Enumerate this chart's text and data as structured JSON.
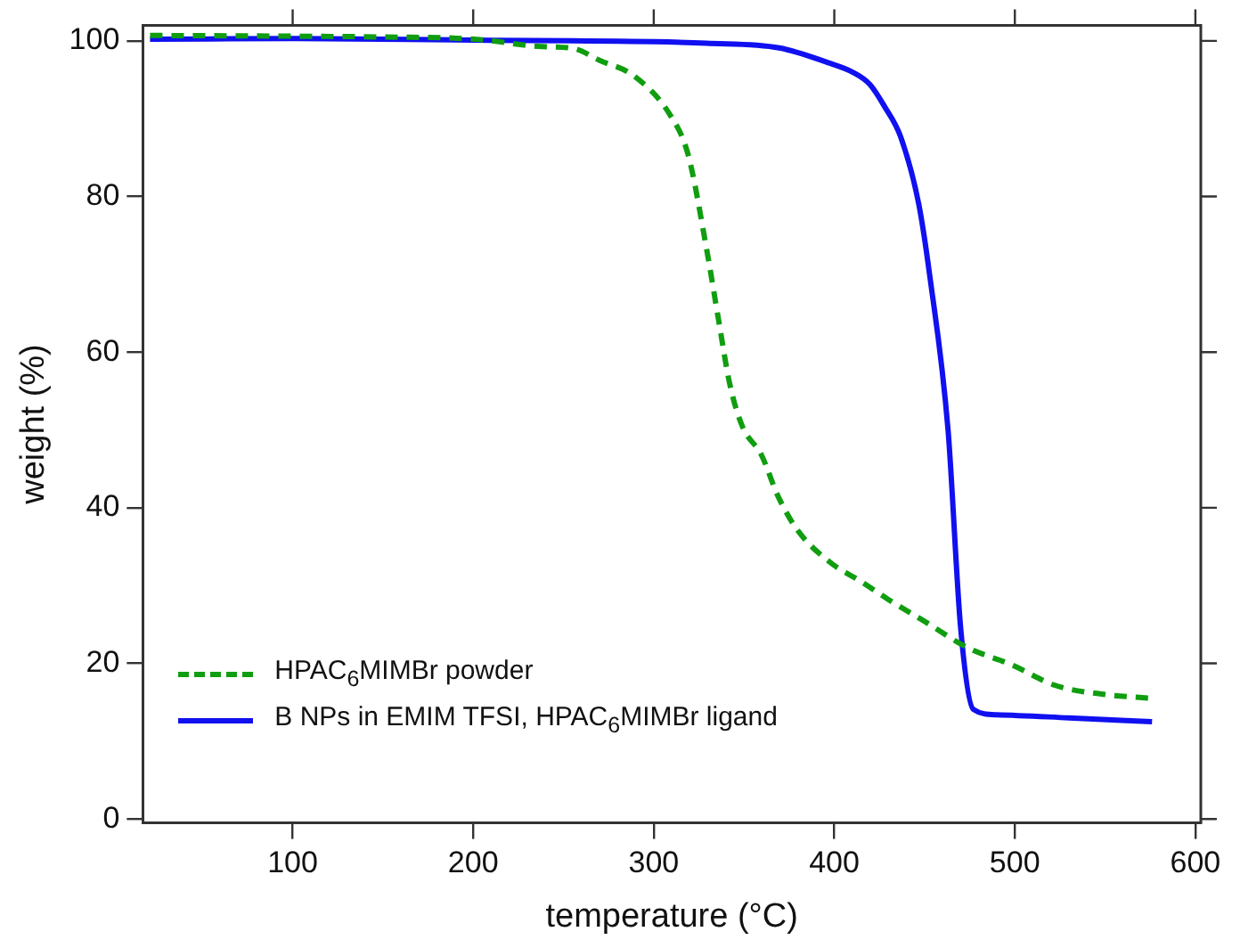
{
  "chart_data": {
    "type": "line",
    "xlabel": "temperature (°C)",
    "ylabel": "weight (%)",
    "xlim": [
      17,
      603
    ],
    "ylim": [
      -0.5,
      102
    ],
    "xticks": [
      100,
      200,
      300,
      400,
      500,
      600
    ],
    "yticks": [
      0,
      20,
      40,
      60,
      80,
      100
    ],
    "grid": false,
    "legend": "bottom left",
    "marker": "none",
    "series": [
      {
        "name": "HPAC$_{6}$MIMBr powder",
        "color": "#109e10",
        "line_style": "dashed",
        "x": [
          21,
          100,
          150,
          202,
          236,
          256,
          270,
          289,
          309,
          319,
          329,
          336,
          342,
          349,
          359.6,
          369,
          380,
          397.6,
          415,
          430,
          450,
          474,
          498.5,
          522,
          550,
          576
        ],
        "values": [
          100.7,
          100.6,
          100.5,
          100.2,
          99.3,
          99,
          97.5,
          95.5,
          90.5,
          85.4,
          73.6,
          64,
          56,
          50.5,
          46.8,
          41.4,
          37,
          33,
          30.5,
          28.2,
          25.4,
          22,
          19.8,
          17.2,
          16,
          15.5
        ]
      },
      {
        "name": "B NPs in EMIM TFSI, HPAC$_{6}$MIMBr ligand",
        "color": "#1010f0",
        "line_style": "solid",
        "x": [
          21,
          100,
          200,
          300,
          329,
          369.5,
          396.6,
          410,
          419.7,
          428,
          436.7,
          446.8,
          453,
          463,
          470,
          477,
          490,
          530,
          576
        ],
        "values": [
          100.2,
          100.3,
          100.1,
          99.9,
          99.7,
          99.1,
          97.2,
          96,
          94.4,
          91.5,
          87.7,
          79,
          69.6,
          50,
          24.5,
          14.1,
          13.4,
          13,
          12.5
        ]
      }
    ]
  }
}
